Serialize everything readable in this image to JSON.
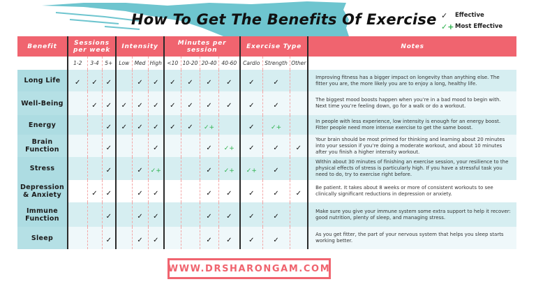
{
  "title": "How To Get The Benefits Of Exercise",
  "legend": [
    {
      "icon": "check-icon",
      "glyph": "✓",
      "label": "Effective"
    },
    {
      "icon": "check-plus-icon",
      "glyph": "✓+",
      "label": "Most Effective"
    }
  ],
  "colors": {
    "header": "#f0646f",
    "brush": "#6ec5cf",
    "most_effective": "#2ab04a",
    "benefit_col": "#addce2"
  },
  "headers": {
    "benefit": "Benefit",
    "sessions": "Sessions per week",
    "intensity": "Intensity",
    "minutes": "Minutes per session",
    "exercise_type": "Exercise Type",
    "notes": "Notes"
  },
  "subheaders": [
    "1-2",
    "3-4",
    "5+",
    "Low",
    "Med",
    "High",
    "<10",
    "10-20",
    "20-40",
    "40-60",
    "Cardio",
    "Strength",
    "Other"
  ],
  "rows": [
    {
      "benefit": "Long Life",
      "cells": [
        "✓",
        "✓",
        "✓",
        "",
        "✓",
        "✓",
        "✓",
        "✓",
        "✓",
        "✓",
        "✓",
        "✓",
        ""
      ],
      "note": "Improving fitness has a bigger impact on longevity than anything else. The fitter you are, the more likely you are to enjoy a long, healthy life."
    },
    {
      "benefit": "Well-Being",
      "cells": [
        "",
        "✓",
        "✓",
        "✓",
        "✓",
        "✓",
        "✓",
        "✓",
        "✓",
        "✓",
        "✓",
        "✓",
        ""
      ],
      "note": "The biggest mood boosts happen when you’re in a bad mood to begin with. Next time you’re feeling down, go for a walk or do a workout."
    },
    {
      "benefit": "Energy",
      "cells": [
        "",
        "",
        "✓",
        "✓",
        "✓",
        "✓",
        "✓",
        "✓",
        "✓+",
        "",
        "✓",
        "✓+",
        ""
      ],
      "note": "In people with less experience, low intensity is enough for an energy boost. Fitter people need more intense exercise to get the same boost."
    },
    {
      "benefit": "Brain Function",
      "cells": [
        "",
        "",
        "✓",
        "",
        "",
        "✓",
        "",
        "",
        "✓",
        "✓+",
        "✓",
        "✓",
        "✓"
      ],
      "note": "Your brain should be most primed for thinking and learning about 20 minutes into your session if you’re doing a moderate workout, and about 10 minutes after you finish a higher intensity workout."
    },
    {
      "benefit": "Stress",
      "cells": [
        "",
        "",
        "✓",
        "",
        "✓",
        "✓+",
        "",
        "",
        "✓",
        "✓+",
        "✓+",
        "✓",
        ""
      ],
      "note": "Within about 30 minutes of finishing an exercise session, your resilience to the physical effects of stress is particularly high. If you have a stressful task you need to do, try to exercise right before."
    },
    {
      "benefit": "Depression & Anxiety",
      "cells": [
        "",
        "✓",
        "✓",
        "",
        "✓",
        "✓",
        "",
        "",
        "✓",
        "✓",
        "✓",
        "✓",
        "✓"
      ],
      "note": "Be patient. It takes about 8 weeks or more of consistent workouts to see clinically significant reductions in depression or anxiety."
    },
    {
      "benefit": "Immune Function",
      "cells": [
        "",
        "",
        "✓",
        "",
        "✓",
        "✓",
        "",
        "",
        "✓",
        "✓",
        "✓",
        "✓",
        ""
      ],
      "note": "Make sure you give your immune system some extra support to help it recover: good nutrition, plenty of sleep, and managing stress."
    },
    {
      "benefit": "Sleep",
      "cells": [
        "",
        "",
        "✓",
        "",
        "✓",
        "✓",
        "",
        "",
        "✓",
        "✓",
        "✓",
        "✓",
        ""
      ],
      "note": "As you get fitter, the part of your nervous system that helps you sleep starts working better."
    }
  ],
  "footer": {
    "url": "WWW.DRSHARONGAM.COM"
  }
}
